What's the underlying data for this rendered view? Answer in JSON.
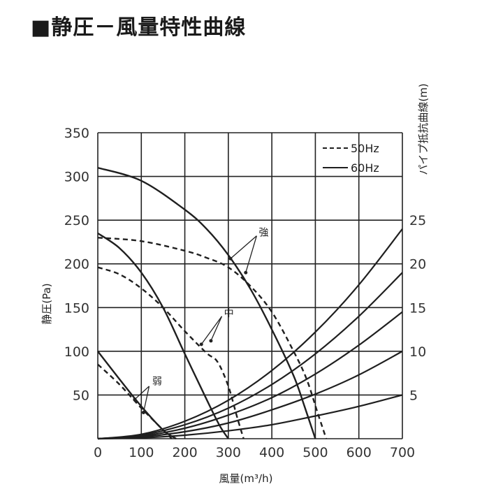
{
  "chart_data": {
    "type": "line",
    "title": "■静圧－風量特性曲線",
    "xlabel": "風量(m³/h)",
    "ylabel": "静圧(Pa)",
    "y2label": "パイプ抵抗曲線(m)",
    "xlim": [
      0,
      700
    ],
    "ylim": [
      0,
      350
    ],
    "y2lim": [
      0,
      35
    ],
    "x_ticks": [
      "0",
      "100",
      "200",
      "300",
      "400",
      "500",
      "600",
      "700"
    ],
    "y_ticks": [
      "0",
      "50",
      "100",
      "150",
      "200",
      "250",
      "300",
      "350"
    ],
    "y2_ticks": [
      "5",
      "10",
      "15",
      "20",
      "25"
    ],
    "grid": true,
    "legend_position": "top-right",
    "legend": [
      {
        "label": "50Hz",
        "style": "dashed"
      },
      {
        "label": "60Hz",
        "style": "solid"
      }
    ],
    "annotations": [
      {
        "label": "強",
        "x": 370,
        "y": 232
      },
      {
        "label": "中",
        "x": 290,
        "y": 140
      },
      {
        "label": "弱",
        "x": 125,
        "y": 62
      }
    ],
    "series": [
      {
        "name": "強 60Hz",
        "style": "solid",
        "x": [
          0,
          100,
          200,
          250,
          300,
          350,
          400,
          450,
          475,
          500
        ],
        "y": [
          310,
          295,
          262,
          240,
          210,
          172,
          125,
          72,
          37,
          0
        ]
      },
      {
        "name": "強 50Hz",
        "style": "dashed",
        "x": [
          0,
          100,
          200,
          250,
          300,
          350,
          400,
          450,
          480,
          505,
          525
        ],
        "y": [
          230,
          226,
          215,
          207,
          196,
          175,
          145,
          100,
          68,
          30,
          0
        ]
      },
      {
        "name": "中 60Hz",
        "style": "solid",
        "x": [
          0,
          50,
          100,
          150,
          200,
          250,
          280,
          300
        ],
        "y": [
          235,
          218,
          190,
          150,
          97,
          45,
          15,
          0
        ]
      },
      {
        "name": "中 50Hz",
        "style": "dashed",
        "x": [
          0,
          50,
          100,
          150,
          200,
          250,
          275,
          300,
          320,
          335
        ],
        "y": [
          196,
          188,
          172,
          150,
          123,
          98,
          88,
          60,
          25,
          0
        ]
      },
      {
        "name": "弱 60Hz",
        "style": "solid",
        "x": [
          0,
          50,
          100,
          150,
          180
        ],
        "y": [
          100,
          68,
          37,
          10,
          0
        ]
      },
      {
        "name": "弱 50Hz",
        "style": "dashed",
        "x": [
          0,
          50,
          100,
          150,
          170
        ],
        "y": [
          85,
          62,
          35,
          10,
          0
        ]
      },
      {
        "name": "パイプ抵抗曲線 24m",
        "axis": "right",
        "style": "solid",
        "x": [
          0,
          100,
          200,
          300,
          400,
          500,
          600,
          700
        ],
        "y2": [
          0,
          0.5,
          2.0,
          4.4,
          7.8,
          12.2,
          17.6,
          24.0
        ]
      },
      {
        "name": "パイプ抵抗曲線 19m",
        "axis": "right",
        "style": "solid",
        "x": [
          0,
          100,
          200,
          300,
          400,
          500,
          600,
          700
        ],
        "y2": [
          0,
          0.4,
          1.6,
          3.5,
          6.2,
          9.7,
          14.0,
          19.0
        ]
      },
      {
        "name": "パイプ抵抗曲線 14.5m",
        "axis": "right",
        "style": "solid",
        "x": [
          0,
          100,
          200,
          300,
          400,
          500,
          600,
          700
        ],
        "y2": [
          0,
          0.3,
          1.2,
          2.7,
          4.7,
          7.4,
          10.7,
          14.5
        ]
      },
      {
        "name": "パイプ抵抗曲線 10m",
        "axis": "right",
        "style": "solid",
        "x": [
          0,
          100,
          200,
          300,
          400,
          500,
          600,
          700
        ],
        "y2": [
          0,
          0.2,
          0.8,
          1.8,
          3.3,
          5.1,
          7.3,
          10.0
        ]
      },
      {
        "name": "パイプ抵抗曲線 5m",
        "axis": "right",
        "style": "solid",
        "x": [
          0,
          100,
          200,
          300,
          400,
          500,
          600,
          700
        ],
        "y2": [
          0,
          0.1,
          0.4,
          0.9,
          1.6,
          2.6,
          3.7,
          5.0
        ]
      }
    ]
  }
}
